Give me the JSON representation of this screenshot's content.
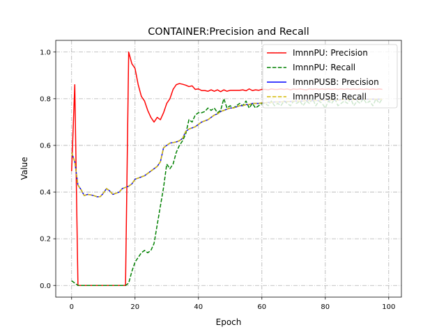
{
  "chart_data": {
    "type": "line",
    "title": "CONTAINER:Precision and Recall",
    "xlabel": "Epoch",
    "ylabel": "Value",
    "xlim": [
      -5,
      104
    ],
    "ylim": [
      -0.05,
      1.05
    ],
    "xticks": [
      0,
      20,
      40,
      60,
      80,
      100
    ],
    "yticks": [
      0.0,
      0.2,
      0.4,
      0.6,
      0.8,
      1.0
    ],
    "xtick_labels": [
      "0",
      "20",
      "40",
      "60",
      "80",
      "100"
    ],
    "ytick_labels": [
      "0.0",
      "0.2",
      "0.4",
      "0.6",
      "0.8",
      "1.0"
    ],
    "grid": true,
    "legend_position": "top-right",
    "series": [
      {
        "name": "ImnnPU: Precision",
        "color": "#ff0000",
        "dash": "solid",
        "x": [
          0,
          1,
          2,
          3,
          4,
          5,
          6,
          7,
          8,
          9,
          10,
          11,
          12,
          13,
          14,
          15,
          16,
          17,
          18,
          19,
          20,
          21,
          22,
          23,
          24,
          25,
          26,
          27,
          28,
          29,
          30,
          31,
          32,
          33,
          34,
          35,
          36,
          37,
          38,
          39,
          40,
          41,
          42,
          43,
          44,
          45,
          46,
          47,
          48,
          49,
          50,
          51,
          52,
          53,
          54,
          55,
          56,
          57,
          58,
          59,
          60,
          61,
          62,
          63,
          64,
          65,
          66,
          67,
          68,
          69,
          70,
          71,
          72,
          73,
          74,
          75,
          76,
          77,
          78,
          79,
          80,
          81,
          82,
          83,
          84,
          85,
          86,
          87,
          88,
          89,
          90,
          91,
          92,
          93,
          94,
          95,
          96,
          97,
          98
        ],
        "y": [
          0.49,
          0.86,
          0.0,
          0.0,
          0.0,
          0.0,
          0.0,
          0.0,
          0.0,
          0.0,
          0.0,
          0.0,
          0.0,
          0.0,
          0.0,
          0.0,
          0.0,
          0.0,
          1.0,
          0.95,
          0.93,
          0.86,
          0.81,
          0.79,
          0.75,
          0.72,
          0.7,
          0.72,
          0.71,
          0.74,
          0.78,
          0.8,
          0.84,
          0.86,
          0.865,
          0.862,
          0.858,
          0.852,
          0.855,
          0.84,
          0.842,
          0.835,
          0.835,
          0.832,
          0.838,
          0.832,
          0.838,
          0.83,
          0.838,
          0.832,
          0.836,
          0.836,
          0.836,
          0.836,
          0.838,
          0.834,
          0.842,
          0.835,
          0.838,
          0.836,
          0.84,
          0.84,
          0.838,
          0.842,
          0.84,
          0.84,
          0.842,
          0.84,
          0.842,
          0.838,
          0.842,
          0.84,
          0.842,
          0.84,
          0.838,
          0.842,
          0.84,
          0.842,
          0.84,
          0.842,
          0.84,
          0.842,
          0.84,
          0.842,
          0.84,
          0.842,
          0.84,
          0.842,
          0.84,
          0.842,
          0.84,
          0.842,
          0.84,
          0.842,
          0.84,
          0.842,
          0.84,
          0.842,
          0.84
        ]
      },
      {
        "name": "ImnnPU: Recall",
        "color": "#008000",
        "dash": "dashed",
        "x": [
          0,
          1,
          2,
          3,
          4,
          5,
          6,
          7,
          8,
          9,
          10,
          11,
          12,
          13,
          14,
          15,
          16,
          17,
          18,
          19,
          20,
          21,
          22,
          23,
          24,
          25,
          26,
          27,
          28,
          29,
          30,
          31,
          32,
          33,
          34,
          35,
          36,
          37,
          38,
          39,
          40,
          41,
          42,
          43,
          44,
          45,
          46,
          47,
          48,
          49,
          50,
          51,
          52,
          53,
          54,
          55,
          56,
          57,
          58,
          59,
          60,
          61,
          62,
          63,
          64,
          65,
          66,
          67,
          68,
          69,
          70,
          71,
          72,
          73,
          74,
          75,
          76,
          77,
          78,
          79,
          80,
          81,
          82,
          83,
          84,
          85,
          86,
          87,
          88,
          89,
          90,
          91,
          92,
          93,
          94,
          95,
          96,
          97,
          98
        ],
        "y": [
          0.02,
          0.01,
          0.0,
          0.0,
          0.0,
          0.0,
          0.0,
          0.0,
          0.0,
          0.0,
          0.0,
          0.0,
          0.0,
          0.0,
          0.0,
          0.0,
          0.0,
          0.0,
          0.01,
          0.06,
          0.1,
          0.12,
          0.14,
          0.15,
          0.14,
          0.15,
          0.18,
          0.26,
          0.34,
          0.42,
          0.52,
          0.5,
          0.52,
          0.57,
          0.6,
          0.62,
          0.65,
          0.71,
          0.7,
          0.73,
          0.74,
          0.74,
          0.745,
          0.76,
          0.75,
          0.76,
          0.74,
          0.75,
          0.8,
          0.76,
          0.77,
          0.76,
          0.77,
          0.78,
          0.77,
          0.79,
          0.76,
          0.78,
          0.76,
          0.77,
          0.78,
          0.78,
          0.77,
          0.79,
          0.77,
          0.78,
          0.77,
          0.79,
          0.78,
          0.77,
          0.79,
          0.78,
          0.79,
          0.77,
          0.79,
          0.78,
          0.8,
          0.77,
          0.79,
          0.78,
          0.76,
          0.79,
          0.78,
          0.8,
          0.77,
          0.78,
          0.79,
          0.78,
          0.8,
          0.77,
          0.79,
          0.78,
          0.8,
          0.78,
          0.79,
          0.77,
          0.8,
          0.78,
          0.8
        ]
      },
      {
        "name": "ImnnPUSB: Precision",
        "color": "#0000ff",
        "dash": "solid",
        "x": [
          0,
          1,
          2,
          3,
          4,
          5,
          6,
          7,
          8,
          9,
          10,
          11,
          12,
          13,
          14,
          15,
          16,
          17,
          18,
          19,
          20,
          21,
          22,
          23,
          24,
          25,
          26,
          27,
          28,
          29,
          30,
          31,
          32,
          33,
          34,
          35,
          36,
          37,
          38,
          39,
          40,
          41,
          42,
          43,
          44,
          45,
          46,
          47,
          48,
          49,
          50,
          51,
          52,
          53,
          54,
          55,
          56,
          57,
          58,
          59,
          60,
          61,
          62,
          63,
          64,
          65,
          66,
          67,
          68,
          69,
          70,
          71,
          72,
          73,
          74,
          75,
          76,
          77,
          78,
          79,
          80,
          81,
          82,
          83,
          84,
          85,
          86,
          87,
          88,
          89,
          90,
          91,
          92,
          93,
          94,
          95,
          96,
          97,
          98
        ],
        "y": [
          0.57,
          0.53,
          0.43,
          0.41,
          0.385,
          0.39,
          0.388,
          0.385,
          0.38,
          0.38,
          0.395,
          0.415,
          0.405,
          0.39,
          0.395,
          0.4,
          0.415,
          0.42,
          0.425,
          0.435,
          0.455,
          0.46,
          0.465,
          0.47,
          0.48,
          0.49,
          0.5,
          0.51,
          0.53,
          0.59,
          0.6,
          0.61,
          0.612,
          0.615,
          0.62,
          0.63,
          0.66,
          0.67,
          0.675,
          0.68,
          0.69,
          0.7,
          0.705,
          0.71,
          0.72,
          0.73,
          0.735,
          0.745,
          0.75,
          0.755,
          0.76,
          0.76,
          0.765,
          0.77,
          0.77,
          0.775,
          0.775,
          0.78,
          0.78,
          0.78,
          0.782,
          0.782,
          0.784,
          0.784,
          0.786,
          0.786,
          0.786,
          0.788,
          0.788,
          0.788,
          0.79,
          0.79,
          0.79,
          0.79,
          0.792,
          0.792,
          0.792,
          0.792,
          0.792,
          0.794,
          0.794,
          0.794,
          0.794,
          0.794,
          0.794,
          0.796,
          0.796,
          0.796,
          0.796,
          0.796,
          0.796,
          0.796,
          0.798,
          0.798,
          0.798,
          0.798,
          0.798,
          0.798,
          0.798
        ]
      },
      {
        "name": "ImnnPUSB: Recall",
        "color": "#d4b800",
        "dash": "dashed",
        "x": [
          0,
          1,
          2,
          3,
          4,
          5,
          6,
          7,
          8,
          9,
          10,
          11,
          12,
          13,
          14,
          15,
          16,
          17,
          18,
          19,
          20,
          21,
          22,
          23,
          24,
          25,
          26,
          27,
          28,
          29,
          30,
          31,
          32,
          33,
          34,
          35,
          36,
          37,
          38,
          39,
          40,
          41,
          42,
          43,
          44,
          45,
          46,
          47,
          48,
          49,
          50,
          51,
          52,
          53,
          54,
          55,
          56,
          57,
          58,
          59,
          60,
          61,
          62,
          63,
          64,
          65,
          66,
          67,
          68,
          69,
          70,
          71,
          72,
          73,
          74,
          75,
          76,
          77,
          78,
          79,
          80,
          81,
          82,
          83,
          84,
          85,
          86,
          87,
          88,
          89,
          90,
          91,
          92,
          93,
          94,
          95,
          96,
          97,
          98
        ],
        "y": [
          0.57,
          0.53,
          0.43,
          0.41,
          0.385,
          0.39,
          0.388,
          0.385,
          0.38,
          0.38,
          0.395,
          0.415,
          0.405,
          0.39,
          0.395,
          0.4,
          0.415,
          0.42,
          0.425,
          0.435,
          0.455,
          0.46,
          0.465,
          0.47,
          0.48,
          0.49,
          0.5,
          0.51,
          0.53,
          0.59,
          0.6,
          0.61,
          0.612,
          0.615,
          0.62,
          0.63,
          0.66,
          0.67,
          0.675,
          0.68,
          0.69,
          0.7,
          0.705,
          0.71,
          0.72,
          0.73,
          0.735,
          0.745,
          0.75,
          0.755,
          0.76,
          0.76,
          0.765,
          0.77,
          0.77,
          0.775,
          0.775,
          0.78,
          0.78,
          0.78,
          0.782,
          0.782,
          0.784,
          0.784,
          0.786,
          0.786,
          0.786,
          0.788,
          0.788,
          0.788,
          0.79,
          0.79,
          0.79,
          0.79,
          0.792,
          0.792,
          0.792,
          0.792,
          0.792,
          0.794,
          0.794,
          0.794,
          0.794,
          0.794,
          0.794,
          0.796,
          0.796,
          0.796,
          0.796,
          0.796,
          0.796,
          0.796,
          0.798,
          0.798,
          0.798,
          0.798,
          0.798,
          0.798,
          0.798
        ]
      }
    ]
  }
}
